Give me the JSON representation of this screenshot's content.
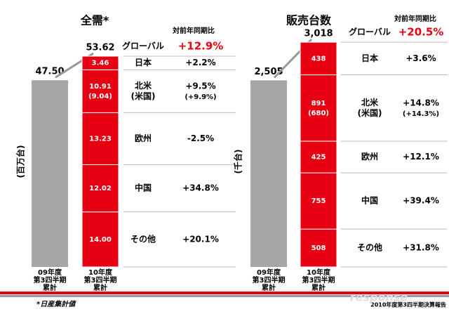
{
  "chart_data": [
    {
      "type": "stacked-bar",
      "title": "全需*",
      "y_label": "(百万台)",
      "categories": [
        [
          "09年度",
          "第3四半期",
          "累計"
        ],
        [
          "10年度",
          "第3四半期",
          "累計"
        ]
      ],
      "totals": [
        47.5,
        53.62
      ],
      "total_labels": [
        "47.50",
        "53.62"
      ],
      "colors": {
        "previous": "#a6a6a6",
        "current": "#e60012"
      },
      "segments": [
        {
          "value": 3.46
        },
        {
          "value": 10.91,
          "sub_value": 9.04,
          "sub_label": "(9.04)"
        },
        {
          "value": 13.23
        },
        {
          "value": 12.02
        },
        {
          "value": 14,
          "value_label": "14.00"
        }
      ],
      "table": {
        "header": "対前年同期比",
        "global": {
          "region": "グローバル",
          "change": "+12.9%"
        },
        "rows": [
          {
            "region": [
              "日本"
            ],
            "change": "+2.2%"
          },
          {
            "region": [
              "北米",
              "(米国)"
            ],
            "change": "+9.5%",
            "sub_change": "(+9.9%)"
          },
          {
            "region": [
              "欧州"
            ],
            "change": "-2.5%"
          },
          {
            "region": [
              "中国"
            ],
            "change": "+34.8%"
          },
          {
            "region": [
              "その他"
            ],
            "change": "+20.1%"
          }
        ]
      }
    },
    {
      "type": "stacked-bar",
      "title": "販売台数",
      "y_label": "(千台)",
      "categories": [
        [
          "09年度",
          "第3四半期",
          "累計"
        ],
        [
          "10年度",
          "第3四半期",
          "累計"
        ]
      ],
      "totals": [
        2505,
        3018
      ],
      "total_labels": [
        "2,505",
        "3,018"
      ],
      "colors": {
        "previous": "#a6a6a6",
        "current": "#e60012"
      },
      "segments": [
        {
          "value": 438
        },
        {
          "value": 891,
          "sub_value": 680,
          "sub_label": "(680)"
        },
        {
          "value": 425
        },
        {
          "value": 755
        },
        {
          "value": 508
        }
      ],
      "table": {
        "header": "対前年同期比",
        "global": {
          "region": "グローバル",
          "change": "+20.5%"
        },
        "rows": [
          {
            "region": [
              "日本"
            ],
            "change": "+3.6%"
          },
          {
            "region": [
              "北米",
              "(米国)"
            ],
            "change": "+14.8%",
            "sub_change": "(+14.3%)"
          },
          {
            "region": [
              "欧州"
            ],
            "change": "+12.1%"
          },
          {
            "region": [
              "中国"
            ],
            "change": "+39.4%"
          },
          {
            "region": [
              "その他"
            ],
            "change": "+31.8%"
          }
        ]
      }
    }
  ],
  "footer": {
    "note": "*日産集計値",
    "source": "2010年度第3四半期決算報告",
    "watermark": "response"
  }
}
